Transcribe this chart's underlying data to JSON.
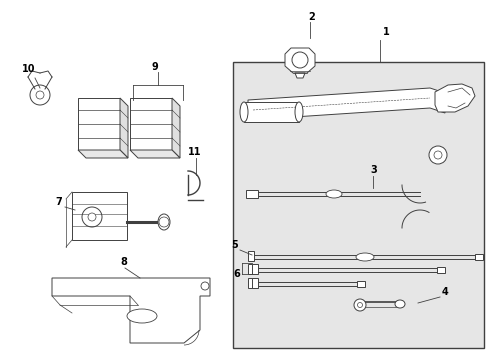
{
  "white": "#ffffff",
  "black": "#000000",
  "gray": "#404040",
  "box_bg": "#e6e6e6",
  "fig_width": 4.89,
  "fig_height": 3.6,
  "dpi": 100
}
